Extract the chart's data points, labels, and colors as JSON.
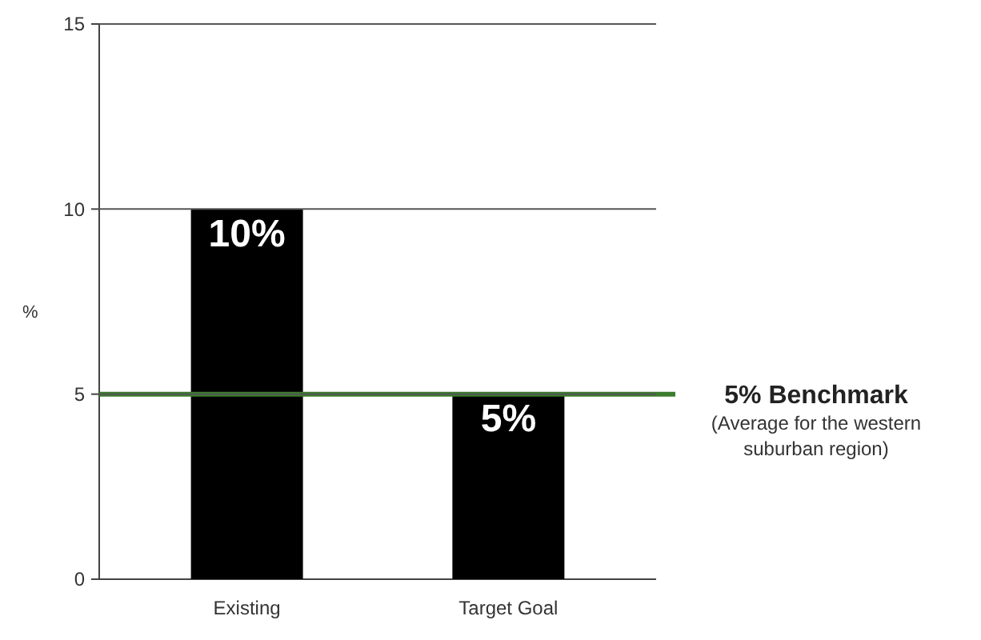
{
  "chart_data": {
    "type": "bar",
    "categories": [
      "Existing",
      "Target Goal"
    ],
    "values": [
      10,
      5
    ],
    "value_labels": [
      "10%",
      "5%"
    ],
    "color": "#000000",
    "ylabel": "%",
    "ylim": [
      0,
      15
    ],
    "yticks": [
      0,
      5,
      10,
      15
    ],
    "grid": "y",
    "ref_lines": [
      {
        "axis": "y",
        "value": 5,
        "label": "5% Benchmark",
        "color": "#3a7d2c"
      }
    ],
    "annotations": [
      "(Average for the western suburban region)"
    ]
  }
}
